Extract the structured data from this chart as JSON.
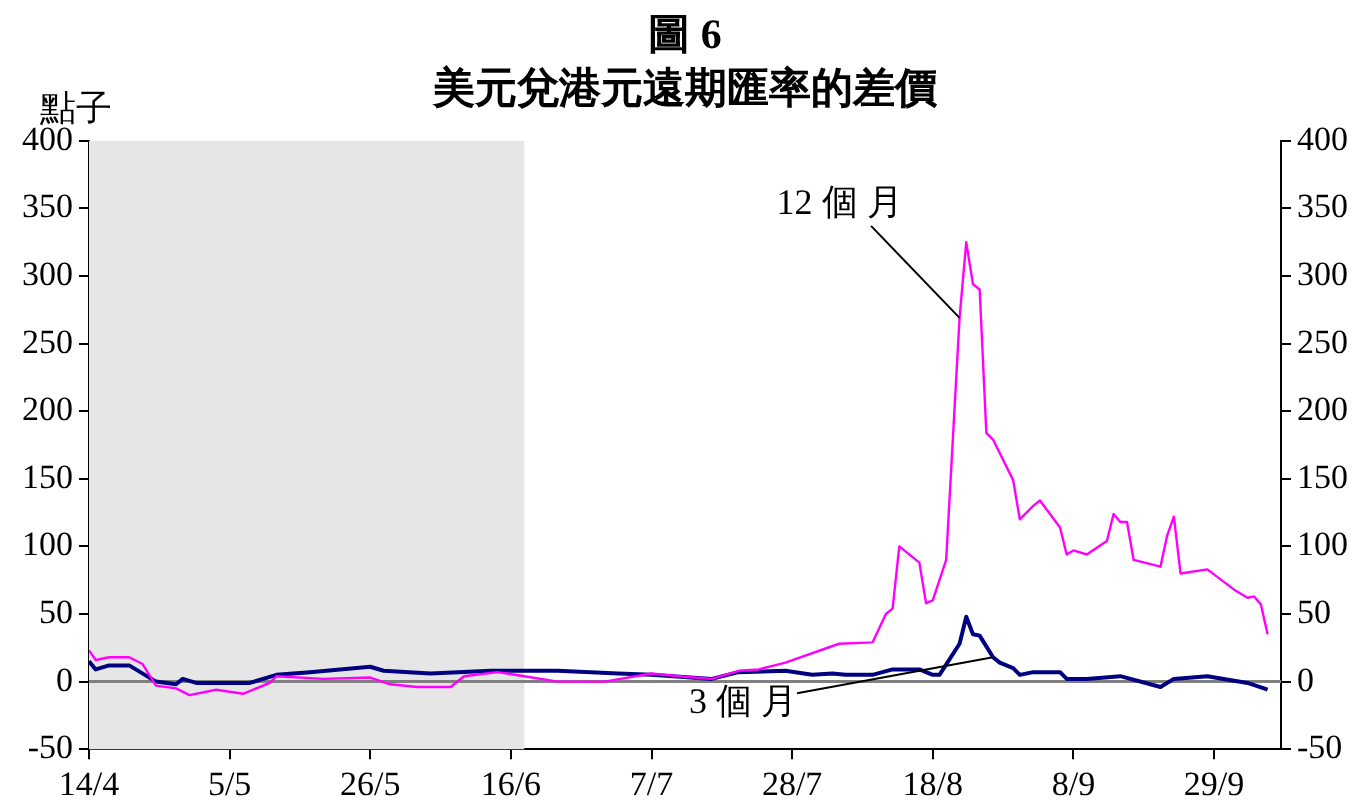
{
  "chart_data": {
    "type": "line",
    "title": "圖 6",
    "subtitle": "美元兌港元遠期匯率的差價",
    "ylabel": "點子",
    "xlim": [
      "--04-14",
      "--10-09"
    ],
    "xticks": [
      {
        "value": "--04-14",
        "label": "14/4"
      },
      {
        "value": "--05-05",
        "label": "5/5"
      },
      {
        "value": "--05-26",
        "label": "26/5"
      },
      {
        "value": "--06-16",
        "label": "16/6"
      },
      {
        "value": "--07-07",
        "label": "7/7"
      },
      {
        "value": "--07-28",
        "label": "28/7"
      },
      {
        "value": "--08-18",
        "label": "18/8"
      },
      {
        "value": "--09-08",
        "label": "8/9"
      },
      {
        "value": "--09-29",
        "label": "29/9"
      }
    ],
    "ylim": [
      -50,
      400
    ],
    "yticks": [
      -50,
      0,
      50,
      100,
      150,
      200,
      250,
      300,
      350,
      400
    ],
    "y2lim": [
      -50,
      400
    ],
    "y2ticks": [
      -50,
      0,
      50,
      100,
      150,
      200,
      250,
      300,
      350,
      400
    ],
    "grid": false,
    "legend": false,
    "marker": "none",
    "line_style": "solid",
    "bands": [
      {
        "axis": "x",
        "from": "--04-14",
        "to": "--06-18",
        "color": "#e6e6e6"
      }
    ],
    "ref_lines": [
      {
        "axis": "y",
        "value": 0,
        "color": "#808080"
      }
    ],
    "annotations": [
      {
        "text": "12 個 月",
        "x": "--08-22",
        "y": 269
      },
      {
        "text": "3 個 月",
        "x": "--08-27",
        "y": 18
      }
    ],
    "series": [
      {
        "color": "#ff00ff",
        "x": [
          "--04-14",
          "--04-15",
          "--04-17",
          "--04-20",
          "--04-22",
          "--04-24",
          "--04-27",
          "--04-29",
          "--05-03",
          "--05-07",
          "--05-11",
          "--05-12",
          "--05-19",
          "--05-26",
          "--05-29",
          "--06-02",
          "--06-07",
          "--06-09",
          "--06-14",
          "--06-18",
          "--06-23",
          "--06-30",
          "--07-07",
          "--07-11",
          "--07-16",
          "--07-20",
          "--07-23",
          "--07-27",
          "--08-04",
          "--08-09",
          "--08-11",
          "--08-12",
          "--08-13",
          "--08-16",
          "--08-17",
          "--08-18",
          "--08-20",
          "--08-22",
          "--08-23",
          "--08-24",
          "--08-25",
          "--08-26",
          "--08-27",
          "--08-30",
          "--08-31",
          "--09-02",
          "--09-03",
          "--09-06",
          "--09-07",
          "--09-08",
          "--09-10",
          "--09-13",
          "--09-14",
          "--09-15",
          "--09-16",
          "--09-17",
          "--09-21",
          "--09-22",
          "--09-23",
          "--09-24",
          "--09-28",
          "--10-02",
          "--10-04",
          "--10-05",
          "--10-06",
          "--10-07"
        ],
        "values": [
          23,
          16,
          18,
          18,
          13,
          -3,
          -5,
          -10,
          -6,
          -9,
          -1,
          4,
          2,
          3,
          -2,
          -4,
          -4,
          4,
          7,
          4,
          0,
          0,
          6,
          4,
          2,
          8,
          9,
          14,
          28,
          29,
          50,
          54,
          100,
          88,
          58,
          60,
          90,
          269,
          325,
          294,
          290,
          184,
          179,
          149,
          120,
          130,
          134,
          114,
          94,
          97,
          94,
          104,
          124,
          118,
          118,
          90,
          85,
          108,
          122,
          80,
          83,
          68,
          62,
          63,
          57,
          35
        ]
      },
      {
        "color": "#000080",
        "x": [
          "--04-14",
          "--04-15",
          "--04-17",
          "--04-20",
          "--04-24",
          "--04-27",
          "--04-28",
          "--04-30",
          "--05-08",
          "--05-12",
          "--05-17",
          "--05-26",
          "--05-28",
          "--06-04",
          "--06-13",
          "--06-23",
          "--07-02",
          "--07-07",
          "--07-16",
          "--07-20",
          "--07-27",
          "--07-31",
          "--08-03",
          "--08-05",
          "--08-09",
          "--08-12",
          "--08-16",
          "--08-18",
          "--08-19",
          "--08-22",
          "--08-23",
          "--08-24",
          "--08-25",
          "--08-27",
          "--08-28",
          "--08-30",
          "--08-31",
          "--09-02",
          "--09-06",
          "--09-07",
          "--09-10",
          "--09-15",
          "--09-21",
          "--09-23",
          "--09-28",
          "--10-04",
          "--10-07"
        ],
        "values": [
          15,
          9,
          12,
          12,
          0,
          -2,
          2,
          -1,
          -1,
          5,
          7,
          11,
          8,
          6,
          8,
          8,
          6,
          5,
          2,
          7,
          8,
          5,
          6,
          5,
          5,
          9,
          9,
          5,
          5,
          28,
          48,
          35,
          34,
          18,
          14,
          10,
          5,
          7,
          7,
          2,
          2,
          4,
          -4,
          2,
          4,
          -1,
          -6
        ]
      }
    ]
  }
}
